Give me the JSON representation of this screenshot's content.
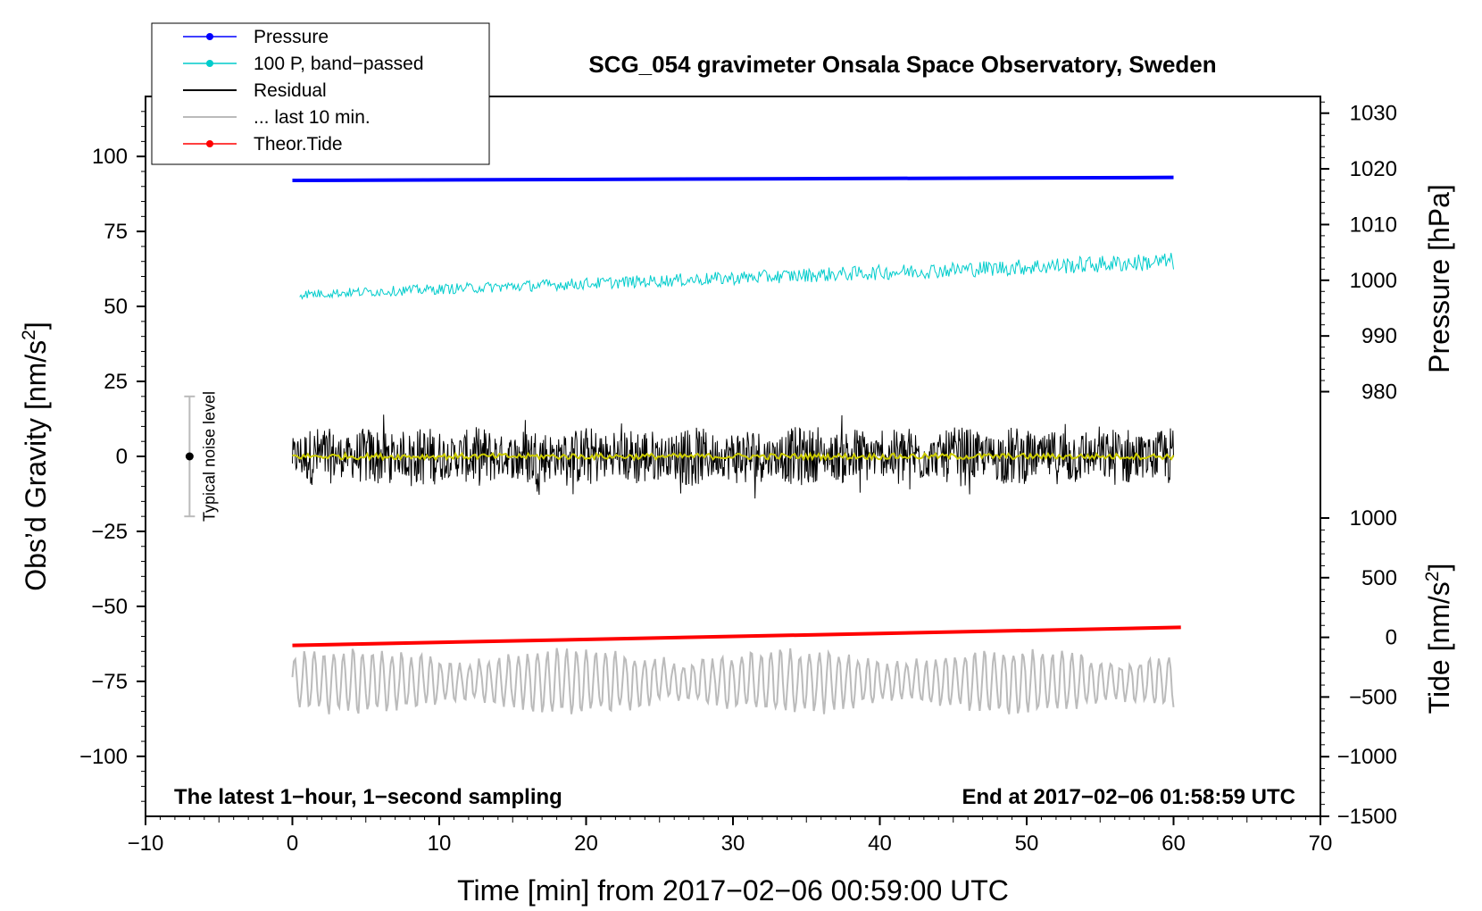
{
  "chart_data": {
    "type": "line",
    "title": "SCG_054 gravimeter Onsala Space Observatory, Sweden",
    "xlabel": "Time [min] from 2017−02−06 00:59:00 UTC",
    "ylabel_left": "Obs’d Gravity [nm/s",
    "ylabel_left_sup": "2",
    "ylabel_left_end": "]",
    "ylabel_right_pressure": "Pressure [hPa]",
    "ylabel_right_tide": "Tide [nm/s",
    "ylabel_right_tide_sup": "2",
    "ylabel_right_tide_end": "]",
    "xlim": [
      -10,
      70
    ],
    "ylim_left": [
      -120,
      120
    ],
    "pressure_axis_range": [
      978,
      1033
    ],
    "tide_axis_range": [
      -1500,
      1000
    ],
    "x_ticks": [
      -10,
      0,
      10,
      20,
      30,
      40,
      50,
      60,
      70
    ],
    "x_tick_labels": [
      "−10",
      "0",
      "10",
      "20",
      "30",
      "40",
      "50",
      "60",
      "70"
    ],
    "left_ticks": [
      100,
      75,
      50,
      25,
      0,
      -25,
      -50,
      -75,
      -100
    ],
    "left_tick_labels": [
      "100",
      "75",
      "50",
      "25",
      "0",
      "−25",
      "−50",
      "−75",
      "−100"
    ],
    "pressure_ticks": [
      1030,
      1020,
      1010,
      1000,
      990,
      980
    ],
    "pressure_tick_labels": [
      "1030",
      "1020",
      "1010",
      "1000",
      "990",
      "980"
    ],
    "tide_ticks": [
      1000,
      500,
      0,
      -500,
      -1000,
      -1500
    ],
    "tide_tick_labels": [
      "1000",
      "500",
      "0",
      "−500",
      "−1000",
      "−1500"
    ],
    "legend": [
      {
        "label": "Pressure",
        "color": "#0000ff",
        "marker": true
      },
      {
        "label": "100 P, band−passed",
        "color": "#00cccc",
        "marker": true
      },
      {
        "label": "Residual",
        "color": "#000000",
        "marker": false
      },
      {
        "label": "... last 10 min.",
        "color": "#bbbbbb",
        "marker": false
      },
      {
        "label": "Theor.Tide",
        "color": "#ff0000",
        "marker": true
      }
    ],
    "annotation_left": "The latest 1−hour, 1−second sampling",
    "annotation_right": "End at 2017−02−06 01:58:59 UTC",
    "noise_label": "Typical noise level",
    "noise_bar": {
      "x": -7,
      "center": 0,
      "low": -20,
      "high": 20
    },
    "series": [
      {
        "name": "Pressure",
        "color": "#0000ff",
        "axis": "left",
        "x_range": [
          0,
          60
        ],
        "start": 92,
        "end": 93
      },
      {
        "name": "100 P, band−passed",
        "color": "#00cccc",
        "axis": "left",
        "x_range": [
          0.5,
          60
        ],
        "start": 54,
        "end": 65,
        "noise_amplitude_start": 1.5,
        "noise_amplitude_end": 3
      },
      {
        "name": "Residual",
        "color": "#000000",
        "axis": "left",
        "x_range": [
          0,
          60
        ],
        "center": 0,
        "noise_amplitude": 10,
        "min": -21,
        "max": 17
      },
      {
        "name": "Residual smoothed",
        "color": "#cccc00",
        "axis": "left",
        "x_range": [
          0,
          60
        ],
        "center": 0,
        "noise_amplitude": 1
      },
      {
        "name": "Theor.Tide",
        "color": "#ff0000",
        "axis": "left",
        "x_range": [
          0,
          60.5
        ],
        "start": -63,
        "end": -57
      },
      {
        "name": "... last 10 min.",
        "color": "#bbbbbb",
        "axis": "left",
        "x_range": [
          0,
          60
        ],
        "center": -75,
        "amplitude": 10,
        "min": -91,
        "max": -58
      }
    ]
  }
}
